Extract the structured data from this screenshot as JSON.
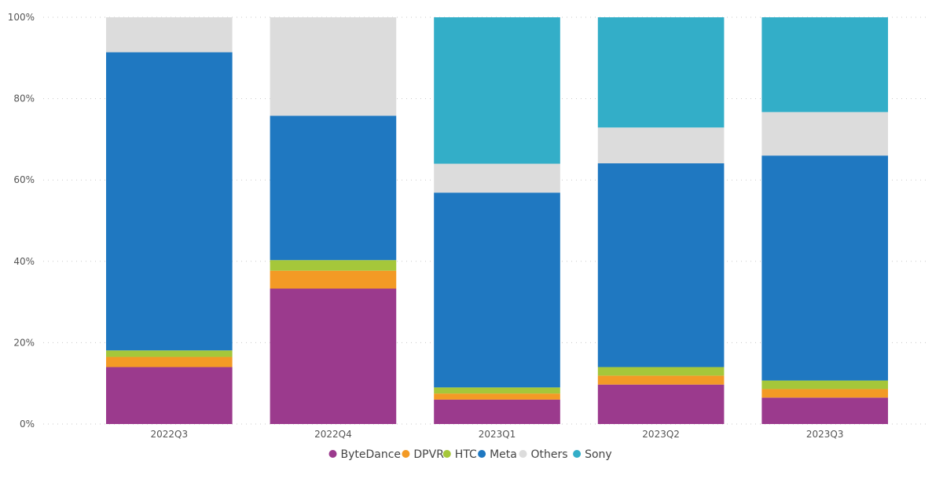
{
  "chart_data": {
    "type": "bar",
    "stacked": true,
    "percent_stacked": true,
    "categories": [
      "2022Q3",
      "2022Q4",
      "2023Q1",
      "2023Q2",
      "2023Q3"
    ],
    "series": [
      {
        "name": "ByteDance",
        "color": "#9b3a8d",
        "values": [
          14,
          33.3,
          6,
          9.7,
          6.5
        ]
      },
      {
        "name": "DPVR",
        "color": "#f39a25",
        "values": [
          2.5,
          4.4,
          1.5,
          2.2,
          2.1
        ]
      },
      {
        "name": "HTC",
        "color": "#a5c73a",
        "values": [
          1.6,
          2.6,
          1.5,
          2.1,
          2.1
        ]
      },
      {
        "name": "Meta",
        "color": "#1f78c1",
        "values": [
          73.3,
          35.5,
          47.9,
          50.1,
          55.3
        ]
      },
      {
        "name": "Others",
        "color": "#dcdcdc",
        "values": [
          8.6,
          24.2,
          7.1,
          8.8,
          10.7
        ]
      },
      {
        "name": "Sony",
        "color": "#33aec8",
        "values": [
          0,
          0,
          36,
          27.1,
          23.3
        ]
      }
    ],
    "ylim": [
      0,
      100
    ],
    "yticks": [
      "0%",
      "20%",
      "40%",
      "60%",
      "80%",
      "100%"
    ],
    "grid": true,
    "legend_position": "bottom-center"
  }
}
